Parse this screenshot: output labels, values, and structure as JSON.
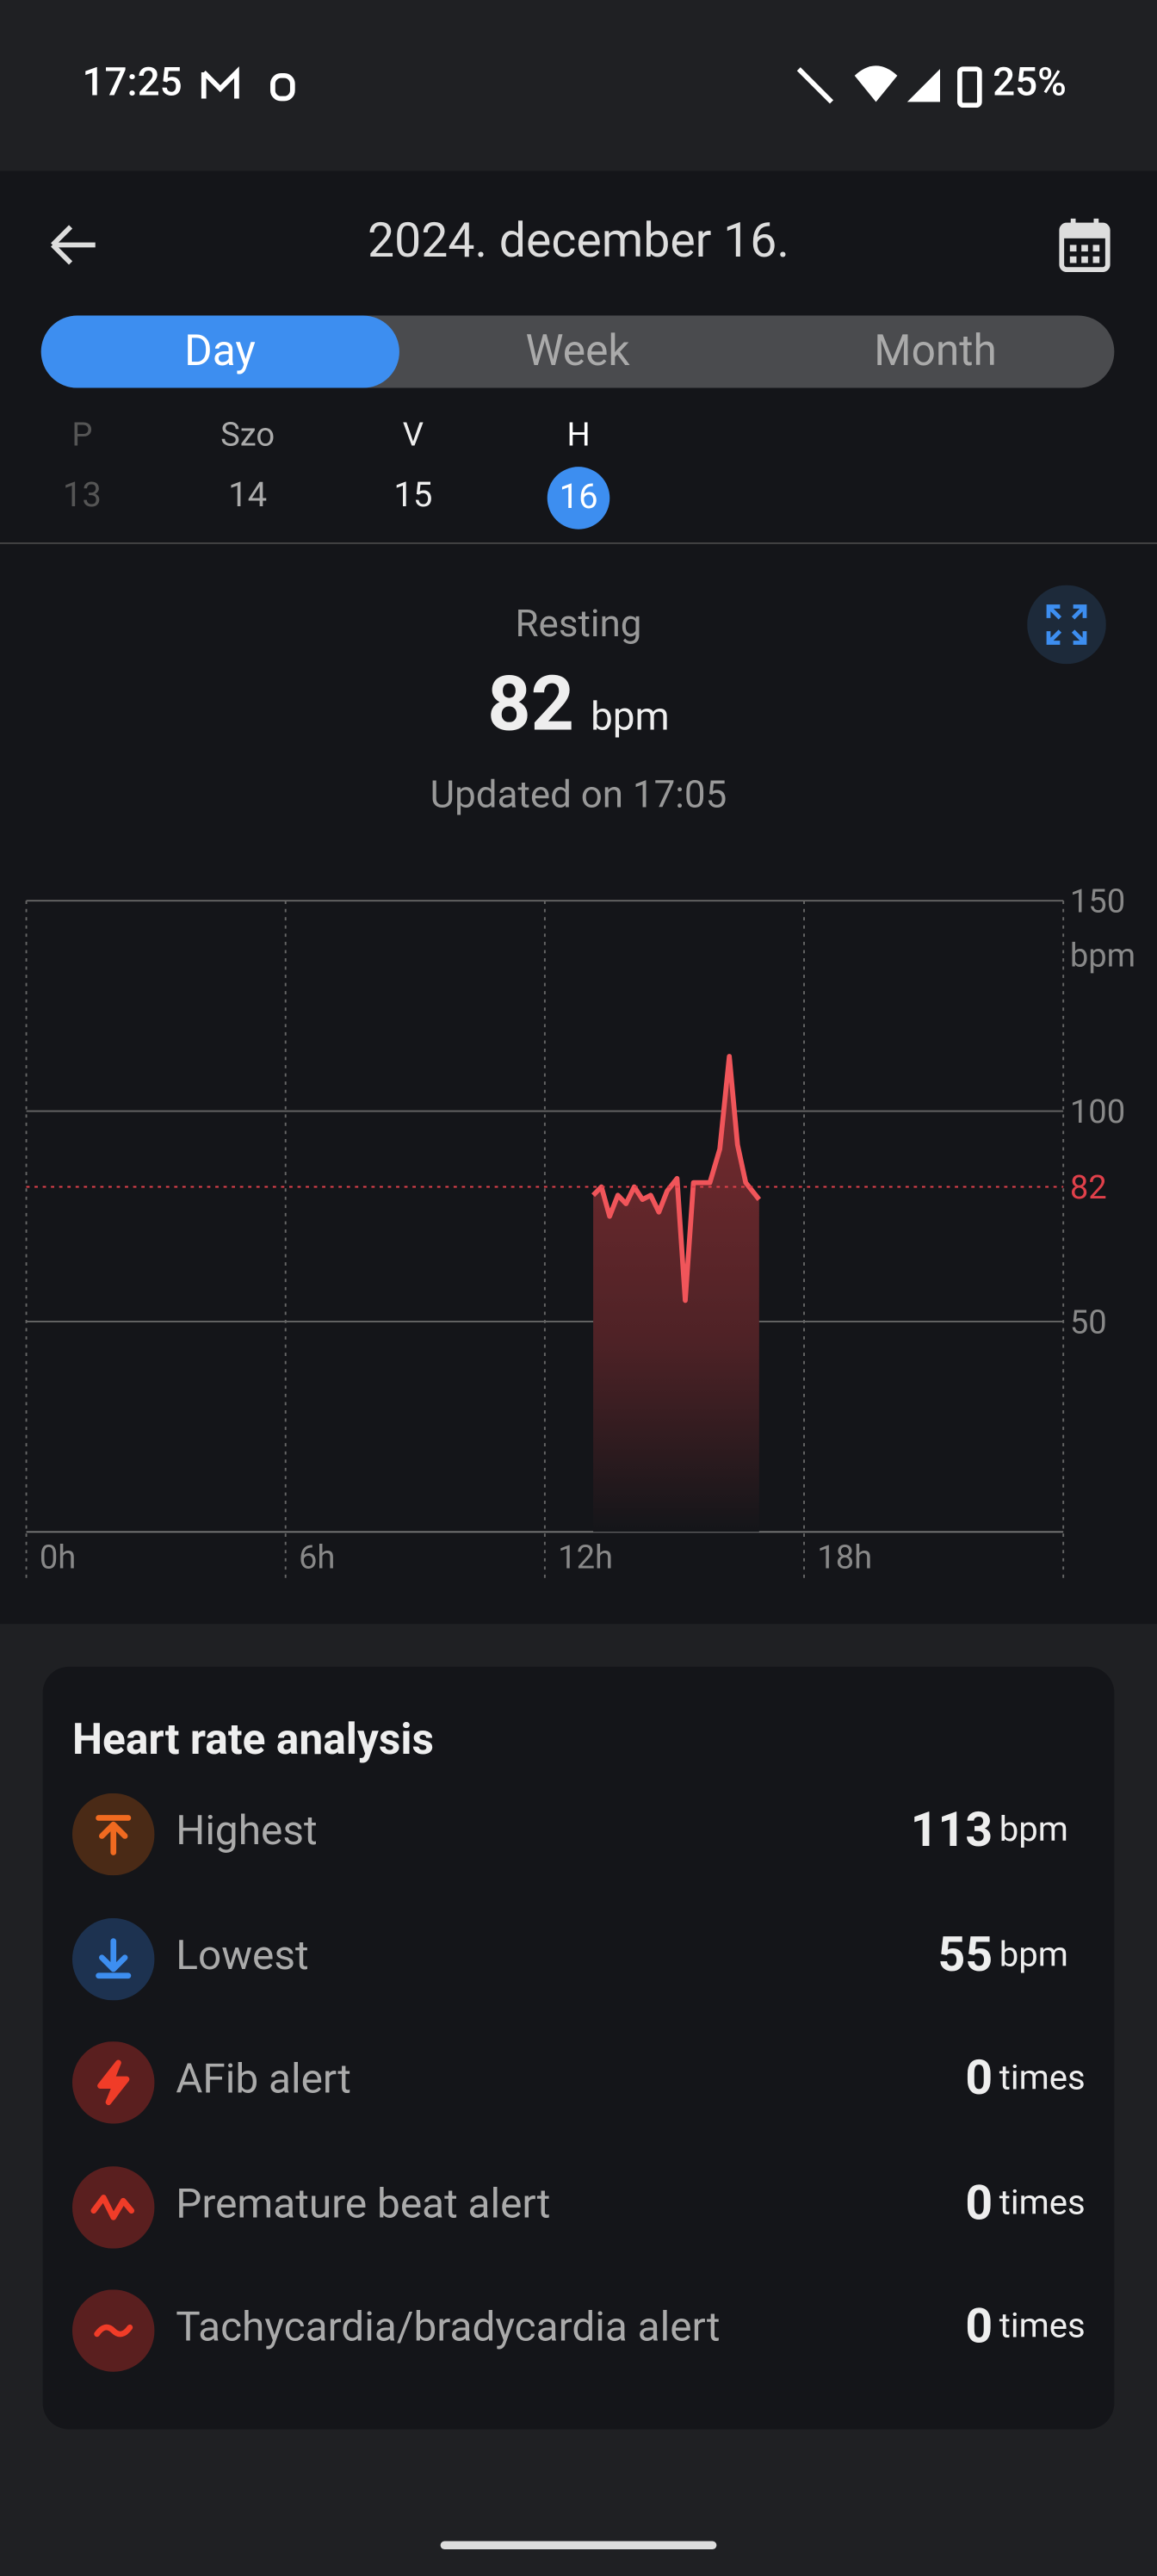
{
  "status_bar": {
    "time": "17:25",
    "battery": "25%"
  },
  "header": {
    "title": "2024. december 16."
  },
  "tabs": [
    "Day",
    "Week",
    "Month"
  ],
  "days": [
    {
      "weekday": "P",
      "date": "13"
    },
    {
      "weekday": "Szo",
      "date": "14"
    },
    {
      "weekday": "V",
      "date": "15"
    },
    {
      "weekday": "H",
      "date": "16"
    }
  ],
  "resting": {
    "label": "Resting",
    "value": 82,
    "unit": "bpm",
    "updated": "Updated on 17:05"
  },
  "chart_data": {
    "type": "line",
    "color": "#f0555a",
    "x": [
      13.12,
      13.31,
      13.5,
      13.69,
      13.88,
      14.07,
      14.26,
      14.45,
      14.64,
      14.83,
      15.06,
      15.25,
      15.44,
      15.82,
      16.05,
      16.27,
      16.46,
      16.65,
      16.96
    ],
    "values": [
      80,
      82,
      75,
      80,
      78,
      82,
      79,
      80,
      76,
      81,
      84,
      55,
      83,
      83,
      91,
      113,
      92,
      83,
      79
    ],
    "xlim": [
      0,
      24
    ],
    "xticks": [
      {
        "value": 0,
        "label": "0h"
      },
      {
        "value": 6,
        "label": "6h"
      },
      {
        "value": 12,
        "label": "12h"
      },
      {
        "value": 18,
        "label": "18h"
      }
    ],
    "ylim": [
      0,
      150
    ],
    "yticks": [
      50,
      100,
      150
    ],
    "y_unit": "bpm",
    "grid": true
  },
  "analysis": {
    "title": "Heart rate analysis",
    "items": [
      {
        "label": "Highest",
        "value": 113,
        "unit": "bpm"
      },
      {
        "label": "Lowest",
        "value": 55,
        "unit": "bpm"
      },
      {
        "label": "AFib alert",
        "value": 0,
        "unit": "times"
      },
      {
        "label": "Premature beat alert",
        "value": 0,
        "unit": "times"
      },
      {
        "label": "Tachycardia/bradycardia alert",
        "value": 0,
        "unit": "times"
      }
    ]
  }
}
